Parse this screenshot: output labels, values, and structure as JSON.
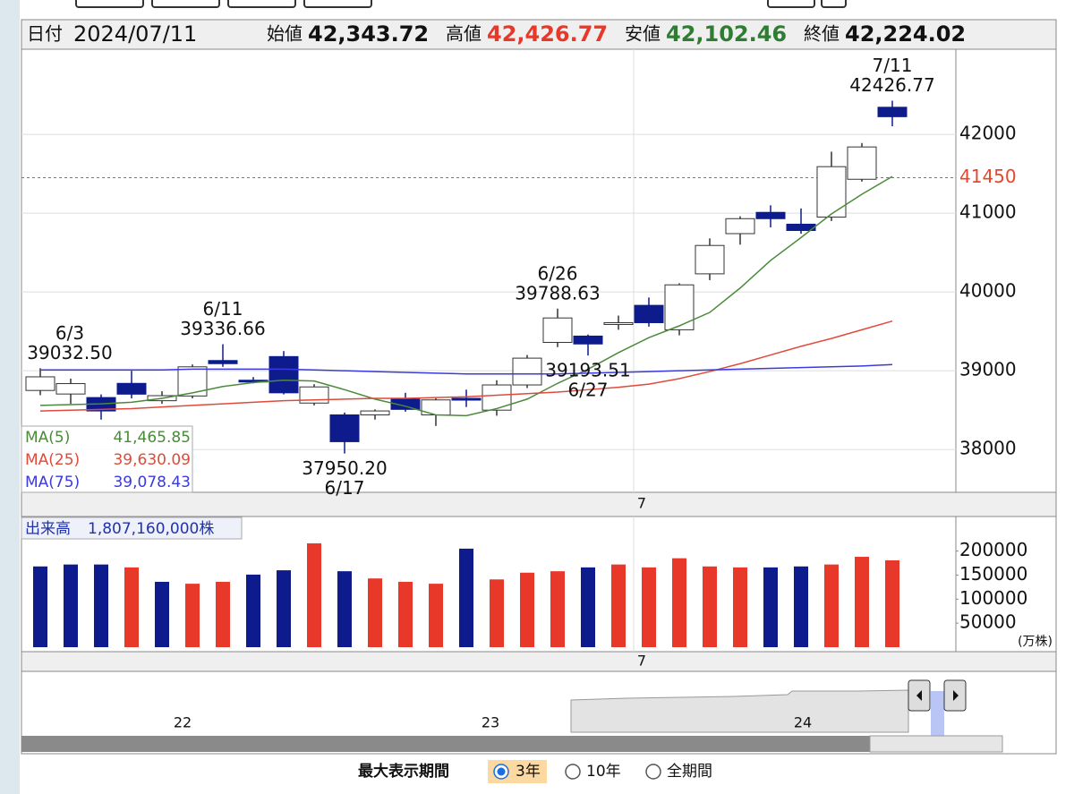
{
  "header": {
    "date_label": "日付",
    "date": "2024/07/11",
    "items": [
      {
        "label": "始値",
        "value": "42,343.72",
        "color": "#111111"
      },
      {
        "label": "高値",
        "value": "42,426.77",
        "color": "#e8382a"
      },
      {
        "label": "安値",
        "value": "42,102.46",
        "color": "#2e7d32"
      },
      {
        "label": "終値",
        "value": "42,224.02",
        "color": "#111111"
      }
    ]
  },
  "chart_data": [
    {
      "type": "candlestick",
      "categories": [
        null,
        null,
        null,
        null,
        null,
        null,
        null,
        null,
        null,
        null,
        null,
        null,
        null,
        null,
        null,
        null,
        null,
        null,
        null,
        null,
        "7",
        null,
        null,
        null,
        null,
        null,
        null,
        null,
        null
      ],
      "open": [
        38750,
        38705,
        38660,
        38840,
        38620,
        38680,
        39130,
        38880,
        39180,
        38590,
        38440,
        38440,
        38640,
        38440,
        38650,
        38500,
        38820,
        39360,
        39440,
        39600,
        39830,
        39520,
        40230,
        40740,
        41010,
        40860,
        40950,
        41430,
        42343.72
      ],
      "high": [
        39032.5,
        38900,
        38700,
        39000,
        38740,
        39080,
        39336.66,
        38920,
        39250,
        38830,
        38470,
        38510,
        38720,
        38650,
        38760,
        38880,
        39200,
        39788.63,
        39460,
        39700,
        39930,
        40110,
        40680,
        40960,
        41100,
        41060,
        41780,
        41890,
        42426.77
      ],
      "low": [
        38690,
        38580,
        38380,
        38650,
        38580,
        38650,
        39050,
        38840,
        38700,
        38560,
        37950.2,
        38380,
        38480,
        38300,
        38540,
        38430,
        38780,
        39300,
        39193.51,
        39520,
        39560,
        39450,
        40150,
        40600,
        40820,
        40740,
        40900,
        41400,
        42102.46
      ],
      "close": [
        38923,
        38837,
        38490,
        38703,
        38684,
        39050,
        39090,
        38870,
        38720,
        38795,
        38100,
        38490,
        38510,
        38630,
        38640,
        38820,
        39160,
        39670,
        39340,
        39610,
        39610,
        40090,
        40590,
        40930,
        40930,
        40780,
        41590,
        41840,
        42224.02
      ],
      "up_color": "#ffffff",
      "down_color": "#0d1b8c",
      "ylim": [
        37480,
        43080
      ],
      "yticks": [
        38000,
        39000,
        40000,
        41000,
        42000
      ],
      "grid": true,
      "reference_line": {
        "value": 41450,
        "color": "#e8452c"
      },
      "series": [
        {
          "name": "MA(5)",
          "color": "#4a8a3a",
          "values": [
            38560,
            38570,
            38580,
            38600,
            38650,
            38720,
            38800,
            38850,
            38880,
            38870,
            38760,
            38640,
            38550,
            38440,
            38430,
            38520,
            38640,
            38840,
            39020,
            39230,
            39420,
            39570,
            39740,
            40050,
            40400,
            40690,
            40990,
            41240,
            41465.85
          ],
          "value_labels": [
            null,
            null,
            null,
            null,
            null,
            null,
            null,
            null,
            null,
            null,
            null,
            null,
            null,
            null,
            null,
            null,
            null,
            null,
            null,
            null,
            null,
            null,
            null,
            null,
            null,
            null,
            null,
            null,
            "41,465.85"
          ]
        },
        {
          "name": "MA(25)",
          "color": "#e04a3a",
          "values": [
            38490,
            38500,
            38510,
            38520,
            38540,
            38560,
            38580,
            38600,
            38620,
            38630,
            38640,
            38650,
            38650,
            38660,
            38670,
            38690,
            38710,
            38730,
            38760,
            38790,
            38830,
            38900,
            38990,
            39090,
            39200,
            39310,
            39410,
            39520,
            39630.09
          ],
          "value_labels": [
            null,
            null,
            null,
            null,
            null,
            null,
            null,
            null,
            null,
            null,
            null,
            null,
            null,
            null,
            null,
            null,
            null,
            null,
            null,
            null,
            null,
            null,
            null,
            null,
            null,
            null,
            null,
            null,
            "39,630.09"
          ]
        },
        {
          "name": "MA(75)",
          "color": "#3a3ae0",
          "values": [
            39010,
            39010,
            39010,
            39010,
            39010,
            39020,
            39020,
            39020,
            39020,
            39010,
            39000,
            38990,
            38980,
            38970,
            38960,
            38960,
            38960,
            38960,
            38970,
            38980,
            38990,
            39000,
            39010,
            39020,
            39030,
            39040,
            39050,
            39060,
            39078.43
          ],
          "value_labels": [
            null,
            null,
            null,
            null,
            null,
            null,
            null,
            null,
            null,
            null,
            null,
            null,
            null,
            null,
            null,
            null,
            null,
            null,
            null,
            null,
            null,
            null,
            null,
            null,
            null,
            null,
            null,
            null,
            "39,078.43"
          ]
        }
      ],
      "annotations": [
        {
          "date": "6/3",
          "value": 39032.5,
          "label": "39032.50"
        },
        {
          "date": "6/11",
          "value": 39336.66
        },
        {
          "date": "6/17",
          "value": 37950.2,
          "label": "37950.20"
        },
        {
          "date": "6/26",
          "value": 39788.63
        },
        {
          "date": "6/27",
          "value": 39193.51
        },
        {
          "date": "7/11",
          "value": 42426.77
        }
      ]
    },
    {
      "type": "bar",
      "title": "出来高",
      "value_label": "1,807,160,000株",
      "unit": "(万株)",
      "categories": [
        null,
        null,
        null,
        null,
        null,
        null,
        null,
        null,
        null,
        null,
        null,
        null,
        null,
        null,
        null,
        null,
        null,
        null,
        null,
        null,
        "7",
        null,
        null,
        null,
        null,
        null,
        null,
        null,
        null
      ],
      "values": [
        168000,
        172000,
        172000,
        166000,
        136000,
        132000,
        136000,
        151000,
        160000,
        216000,
        158000,
        143000,
        136000,
        132000,
        205000,
        141000,
        155000,
        158000,
        166000,
        172000,
        166000,
        185000,
        168000,
        166000,
        166000,
        168000,
        172000,
        188000,
        180716
      ],
      "colors": [
        "#0d1b8c",
        "#0d1b8c",
        "#0d1b8c",
        "#e8382a",
        "#0d1b8c",
        "#e8382a",
        "#e8382a",
        "#0d1b8c",
        "#0d1b8c",
        "#e8382a",
        "#0d1b8c",
        "#e8382a",
        "#e8382a",
        "#e8382a",
        "#0d1b8c",
        "#e8382a",
        "#e8382a",
        "#e8382a",
        "#0d1b8c",
        "#e8382a",
        "#e8382a",
        "#e8382a",
        "#e8382a",
        "#e8382a",
        "#0d1b8c",
        "#0d1b8c",
        "#e8382a",
        "#e8382a",
        "#e8382a"
      ],
      "ylim": [
        0,
        270000
      ],
      "yticks": [
        50000,
        100000,
        150000,
        200000
      ]
    }
  ],
  "navigator": {
    "labels": [
      "22",
      "23",
      "24"
    ]
  },
  "footer": {
    "label": "最大表示期間",
    "options": [
      "3年",
      "10年",
      "全期間"
    ],
    "selected": 0
  }
}
